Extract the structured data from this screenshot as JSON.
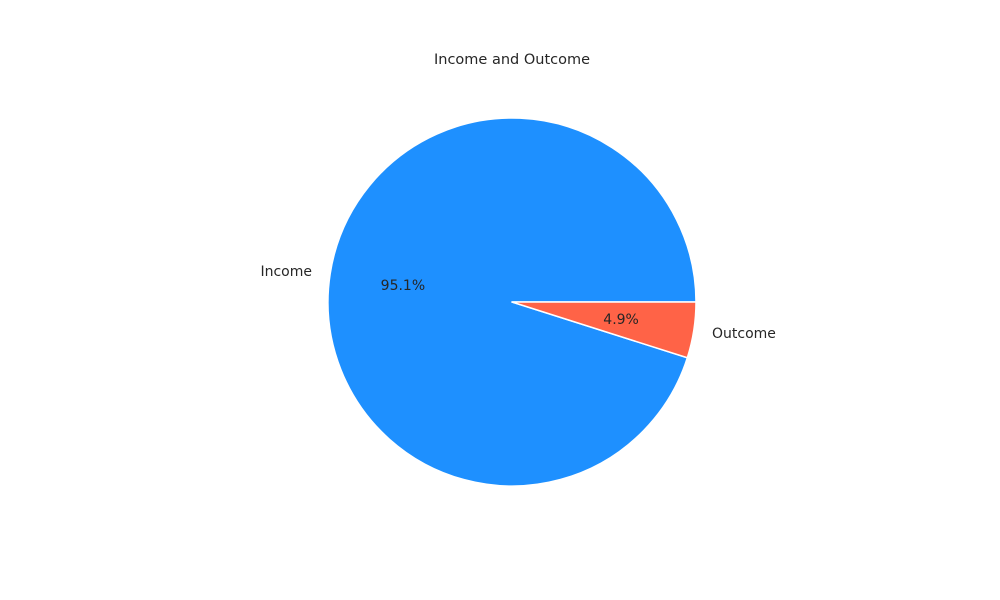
{
  "chart_data": {
    "type": "pie",
    "title": "Income and Outcome",
    "slices": [
      {
        "label": "Income",
        "value": 95.1,
        "pct_label": "95.1%",
        "color": "#1E90FF"
      },
      {
        "label": "Outcome",
        "value": 4.9,
        "pct_label": "4.9%",
        "color": "#FF6347"
      }
    ],
    "start_angle_deg": 0,
    "direction": "counterclockwise",
    "edge_color": "#ffffff"
  }
}
